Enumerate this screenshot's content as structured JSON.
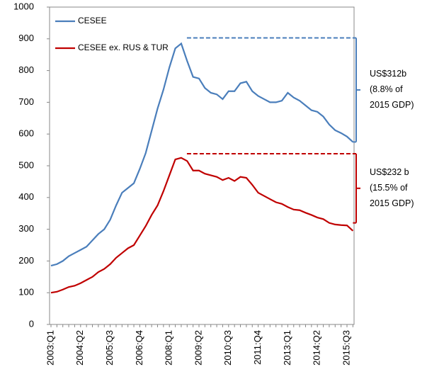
{
  "chart_data": {
    "type": "line",
    "categories": [
      "2003:Q1",
      null,
      null,
      null,
      null,
      "2004:Q2",
      null,
      null,
      null,
      null,
      "2005:Q3",
      null,
      null,
      null,
      null,
      "2006:Q4",
      null,
      null,
      null,
      null,
      "2008:Q1",
      null,
      null,
      null,
      null,
      "2009:Q2",
      null,
      null,
      null,
      null,
      "2010:Q3",
      null,
      null,
      null,
      null,
      "2011:Q4",
      null,
      null,
      null,
      null,
      "2013:Q1",
      null,
      null,
      null,
      null,
      "2014:Q2",
      null,
      null,
      null,
      null,
      "2015:Q3",
      null
    ],
    "series": [
      {
        "name": "CESEE",
        "color": "#4a7ebb",
        "values": [
          185,
          190,
          200,
          215,
          225,
          235,
          245,
          265,
          285,
          300,
          330,
          375,
          415,
          430,
          445,
          490,
          540,
          610,
          680,
          740,
          810,
          870,
          885,
          830,
          780,
          775,
          745,
          730,
          725,
          710,
          735,
          735,
          760,
          765,
          735,
          720,
          710,
          700,
          700,
          705,
          730,
          715,
          705,
          690,
          675,
          670,
          655,
          630,
          612,
          603,
          592,
          575
        ]
      },
      {
        "name": "CESEE ex. RUS & TUR",
        "color": "#c00000",
        "values": [
          100,
          103,
          110,
          118,
          122,
          130,
          140,
          150,
          165,
          175,
          190,
          210,
          225,
          240,
          250,
          280,
          310,
          345,
          375,
          420,
          470,
          520,
          525,
          515,
          485,
          485,
          475,
          470,
          465,
          455,
          462,
          452,
          465,
          462,
          440,
          415,
          405,
          395,
          385,
          380,
          370,
          362,
          360,
          352,
          345,
          337,
          332,
          320,
          315,
          313,
          312,
          295
        ]
      }
    ],
    "ylim": [
      0,
      1000
    ],
    "yticks": [
      0,
      100,
      200,
      300,
      400,
      500,
      600,
      700,
      800,
      900,
      1000
    ],
    "legend": "top-left",
    "annotations": [
      {
        "lines": [
          "US$312b",
          "(8.8% of",
          "2015 GDP)"
        ],
        "from": 903,
        "to": 575,
        "color": "#4a7ebb"
      },
      {
        "lines": [
          "US$232 b",
          "(15.5% of",
          "2015 GDP)"
        ],
        "from": 538,
        "to": 320,
        "color": "#c00000"
      }
    ]
  }
}
